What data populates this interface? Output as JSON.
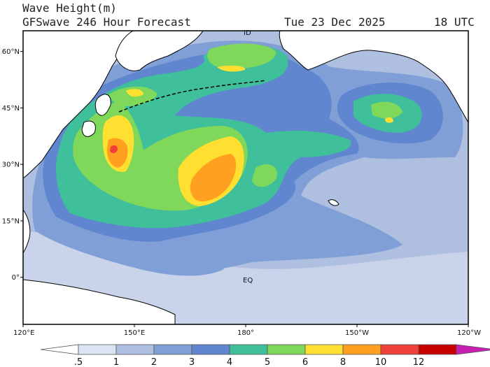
{
  "header": {
    "title": "Wave Height(m)",
    "subtitle": "GFSwave 246 Hour Forecast",
    "date": "Tue 23 Dec 2025",
    "time": "18 UTC"
  },
  "map": {
    "lat_ticks": [
      {
        "label": "60°N",
        "value": 60
      },
      {
        "label": "45°N",
        "value": 45
      },
      {
        "label": "30°N",
        "value": 30
      },
      {
        "label": "15°N",
        "value": 15
      },
      {
        "label": "0°",
        "value": 0
      }
    ],
    "lon_ticks": [
      {
        "label": "120°E",
        "value": 120
      },
      {
        "label": "150°E",
        "value": 150
      },
      {
        "label": "180°",
        "value": 180
      },
      {
        "label": "150°W",
        "value": 210
      },
      {
        "label": "120°W",
        "value": 240
      }
    ],
    "equator_label": "EQ",
    "id_label": "ID",
    "colors": {
      "land": "#ffffff",
      "ocean_0": "#c9d4ea",
      "ocean_1": "#aebfe0",
      "band_1_2": "#7f9fd6",
      "band_2_3": "#5f86cf",
      "band_3_4": "#3fbf9a",
      "band_4_5": "#7fd85a",
      "band_5_6": "#ffe030",
      "band_6_8": "#ffa020",
      "band_8_10": "#f0403a",
      "band_10_12": "#c80000"
    }
  },
  "colorbar": {
    "labels": [
      ".5",
      "1",
      "2",
      "3",
      "4",
      "5",
      "6",
      "8",
      "10",
      "12"
    ],
    "colors": [
      "#ffffff",
      "#dbe4f2",
      "#aebfe0",
      "#7f9fd6",
      "#5f86cf",
      "#3fbf9a",
      "#7fd85a",
      "#ffe030",
      "#ffa020",
      "#f0403a",
      "#c80000"
    ],
    "arrow_color": "#c81eb4"
  }
}
